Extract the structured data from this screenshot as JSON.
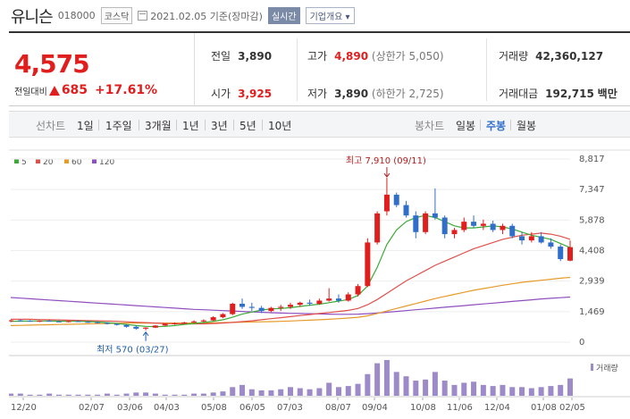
{
  "header": {
    "name": "유니슨",
    "code": "018000",
    "market": "코스닥",
    "date": "2021.02.05 기준(장마감)",
    "realtime_label": "실시간",
    "company_label": "기업개요 ▾"
  },
  "quote": {
    "price": "4,575",
    "change_label": "전일대비",
    "change": "685",
    "change_pct": "+17.61%",
    "prev_label": "전일",
    "prev": "3,890",
    "open_label": "시가",
    "open": "3,925",
    "high_label": "고가",
    "high": "4,890",
    "upper_limit": "(상한가 5,050)",
    "low_label": "저가",
    "low": "3,890",
    "lower_limit": "(하한가 2,725)",
    "volume_label": "거래량",
    "volume": "42,360,127",
    "amount_label": "거래대금",
    "amount": "192,715",
    "amount_unit": "백만"
  },
  "toolbar": {
    "line_label": "선차트",
    "ranges": [
      "1일",
      "1주일",
      "3개월",
      "1년",
      "3년",
      "5년",
      "10년"
    ],
    "candle_label": "봉차트",
    "candles": [
      "일봉",
      "주봉",
      "월봉"
    ],
    "selected_candle": "주봉"
  },
  "colors": {
    "up": "#e01e1e",
    "down": "#2f6fc9",
    "ma5": "#3aaa35",
    "ma20": "#e0504a",
    "ma60": "#e69a28",
    "ma120": "#8e4fc0",
    "volume": "#9c8ac9"
  },
  "chart_data": {
    "type": "candlestick",
    "legend": [
      "5",
      "20",
      "60",
      "120"
    ],
    "ylim": [
      0,
      8817
    ],
    "yticks": [
      0,
      1469,
      2939,
      4408,
      5878,
      7347,
      8817
    ],
    "ytick_labels": [
      "0",
      "1,469",
      "2,939",
      "4,408",
      "5,878",
      "7,347",
      "8,817"
    ],
    "xtick_labels": [
      "12/20",
      "02/07",
      "03/06",
      "04/03",
      "05/08",
      "06/05",
      "07/03",
      "08/07",
      "09/04",
      "10/08",
      "11/06",
      "12/04",
      "01/08",
      "02/05"
    ],
    "annotation_high": "최고 7,910 (09/11)",
    "annotation_low": "최저 570 (03/27)",
    "volume_label": "거래량",
    "weeks": 59,
    "ohlc": [
      [
        1020,
        1080,
        960,
        1050
      ],
      [
        1050,
        1100,
        1000,
        1030
      ],
      [
        1030,
        1060,
        980,
        1010
      ],
      [
        1010,
        1050,
        970,
        1030
      ],
      [
        1030,
        1070,
        990,
        1000
      ],
      [
        1000,
        1040,
        960,
        990
      ],
      [
        990,
        1030,
        950,
        1010
      ],
      [
        1010,
        1050,
        970,
        980
      ],
      [
        980,
        1020,
        930,
        960
      ],
      [
        960,
        1000,
        900,
        930
      ],
      [
        930,
        960,
        850,
        880
      ],
      [
        880,
        920,
        800,
        830
      ],
      [
        830,
        870,
        700,
        740
      ],
      [
        740,
        800,
        600,
        650
      ],
      [
        650,
        720,
        570,
        700
      ],
      [
        700,
        820,
        680,
        800
      ],
      [
        800,
        900,
        780,
        880
      ],
      [
        880,
        950,
        840,
        910
      ],
      [
        910,
        980,
        880,
        950
      ],
      [
        950,
        1050,
        930,
        1000
      ],
      [
        1000,
        1100,
        960,
        1050
      ],
      [
        1050,
        1250,
        1020,
        1200
      ],
      [
        1200,
        1400,
        1150,
        1350
      ],
      [
        1350,
        1900,
        1300,
        1850
      ],
      [
        1850,
        2100,
        1600,
        1700
      ],
      [
        1700,
        1900,
        1500,
        1650
      ],
      [
        1650,
        1750,
        1400,
        1500
      ],
      [
        1500,
        1700,
        1450,
        1650
      ],
      [
        1650,
        1800,
        1500,
        1700
      ],
      [
        1700,
        1900,
        1600,
        1800
      ],
      [
        1800,
        1950,
        1700,
        1900
      ],
      [
        1900,
        2050,
        1750,
        1850
      ],
      [
        1850,
        2100,
        1800,
        2000
      ],
      [
        2000,
        2600,
        1950,
        2100
      ],
      [
        2100,
        2300,
        1900,
        2000
      ],
      [
        2000,
        2400,
        1950,
        2300
      ],
      [
        2300,
        2800,
        2200,
        2700
      ],
      [
        2700,
        5000,
        2650,
        4800
      ],
      [
        4800,
        6300,
        4700,
        6200
      ],
      [
        6300,
        7910,
        6100,
        7100
      ],
      [
        7100,
        7200,
        6500,
        6600
      ],
      [
        6600,
        6800,
        6000,
        6100
      ],
      [
        6100,
        6300,
        5000,
        5300
      ],
      [
        5300,
        6300,
        5200,
        6200
      ],
      [
        6200,
        7400,
        5900,
        6000
      ],
      [
        6000,
        6100,
        5000,
        5200
      ],
      [
        5200,
        5500,
        5000,
        5400
      ],
      [
        5400,
        6000,
        5300,
        5800
      ],
      [
        5800,
        6100,
        5500,
        5600
      ],
      [
        5600,
        5900,
        5400,
        5700
      ],
      [
        5700,
        5850,
        5300,
        5400
      ],
      [
        5400,
        5700,
        5200,
        5600
      ],
      [
        5600,
        5700,
        5000,
        5100
      ],
      [
        5100,
        5300,
        4700,
        4900
      ],
      [
        4900,
        5300,
        4800,
        5100
      ],
      [
        5100,
        5300,
        4750,
        4800
      ],
      [
        4800,
        5000,
        4500,
        4600
      ],
      [
        4600,
        4700,
        3900,
        4000
      ],
      [
        3925,
        4890,
        3890,
        4575
      ]
    ],
    "ma5": [
      1000,
      1010,
      1020,
      1020,
      1020,
      1010,
      1000,
      1000,
      990,
      970,
      940,
      900,
      850,
      800,
      760,
      750,
      760,
      800,
      850,
      900,
      950,
      1000,
      1080,
      1200,
      1350,
      1450,
      1550,
      1600,
      1620,
      1660,
      1720,
      1780,
      1830,
      1900,
      1980,
      2050,
      2250,
      2700,
      3600,
      4700,
      5400,
      5800,
      6000,
      6100,
      6000,
      5800,
      5600,
      5500,
      5500,
      5550,
      5600,
      5550,
      5450,
      5300,
      5150,
      5050,
      4950,
      4750,
      4550
    ],
    "ma20": [
      1100,
      1100,
      1100,
      1090,
      1080,
      1070,
      1060,
      1050,
      1040,
      1030,
      1020,
      1000,
      980,
      960,
      940,
      920,
      900,
      890,
      880,
      880,
      880,
      900,
      920,
      950,
      990,
      1030,
      1080,
      1130,
      1180,
      1230,
      1280,
      1330,
      1380,
      1430,
      1480,
      1530,
      1620,
      1800,
      2050,
      2350,
      2650,
      2950,
      3200,
      3450,
      3700,
      3900,
      4100,
      4300,
      4500,
      4650,
      4800,
      4950,
      5050,
      5150,
      5200,
      5250,
      5200,
      5100,
      4950
    ],
    "ma60": [
      800,
      810,
      820,
      830,
      840,
      850,
      860,
      870,
      880,
      890,
      900,
      910,
      920,
      920,
      920,
      920,
      920,
      920,
      920,
      920,
      920,
      930,
      940,
      950,
      960,
      970,
      980,
      990,
      1000,
      1020,
      1040,
      1060,
      1080,
      1100,
      1130,
      1160,
      1200,
      1270,
      1380,
      1500,
      1620,
      1740,
      1860,
      1980,
      2100,
      2200,
      2300,
      2400,
      2500,
      2580,
      2660,
      2740,
      2810,
      2880,
      2930,
      2980,
      3030,
      3080,
      3120
    ],
    "ma120": [
      2150,
      2120,
      2090,
      2060,
      2030,
      2000,
      1970,
      1940,
      1910,
      1880,
      1850,
      1820,
      1790,
      1760,
      1730,
      1700,
      1670,
      1640,
      1610,
      1580,
      1560,
      1540,
      1520,
      1500,
      1480,
      1460,
      1440,
      1420,
      1400,
      1390,
      1380,
      1370,
      1360,
      1350,
      1340,
      1340,
      1350,
      1370,
      1400,
      1440,
      1480,
      1520,
      1560,
      1600,
      1640,
      1680,
      1720,
      1760,
      1800,
      1840,
      1880,
      1920,
      1960,
      2000,
      2040,
      2080,
      2110,
      2140,
      2170
    ],
    "volume": [
      2,
      2,
      1,
      1,
      2,
      1,
      1,
      1,
      1,
      1,
      2,
      1,
      2,
      3,
      3,
      2,
      1,
      1,
      1,
      2,
      2,
      3,
      4,
      8,
      10,
      6,
      5,
      5,
      6,
      8,
      7,
      6,
      7,
      12,
      8,
      9,
      11,
      20,
      30,
      33,
      22,
      18,
      14,
      15,
      22,
      14,
      10,
      12,
      13,
      10,
      9,
      10,
      8,
      8,
      7,
      8,
      9,
      10,
      16
    ]
  }
}
